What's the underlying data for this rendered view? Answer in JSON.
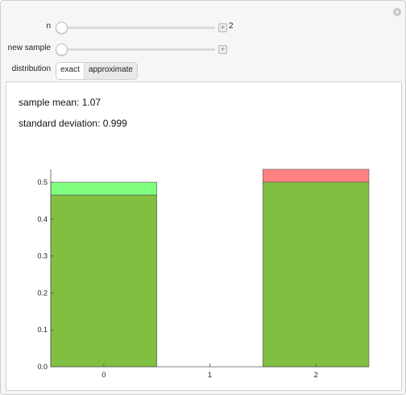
{
  "controls": {
    "n": {
      "label": "n",
      "value": "2",
      "fraction": 0.0
    },
    "new_sample": {
      "label": "new sample",
      "fraction": 0.0
    },
    "distribution": {
      "label": "distribution",
      "options": [
        "exact",
        "approximate"
      ],
      "selected": "exact"
    }
  },
  "stats": {
    "mean": "sample mean: 1.07",
    "std": "standard deviation: 0.999"
  },
  "colors": {
    "exact": "#80ff80",
    "sample": "#ff8080",
    "overlap": "#80c040"
  },
  "chart_data": {
    "type": "bar",
    "categories": [
      "0",
      "1",
      "2"
    ],
    "x": [
      0,
      1,
      2
    ],
    "series": [
      {
        "values": [
          0.5,
          0.0,
          0.5
        ]
      },
      {
        "values": [
          0.465,
          0.0,
          0.535
        ]
      }
    ],
    "ylim": [
      0,
      0.535
    ],
    "yticks": [
      0.0,
      0.1,
      0.2,
      0.3,
      0.4,
      0.5
    ],
    "ytick_labels": [
      "0.0",
      "0.1",
      "0.2",
      "0.3",
      "0.4",
      "0.5"
    ],
    "grid": false
  }
}
